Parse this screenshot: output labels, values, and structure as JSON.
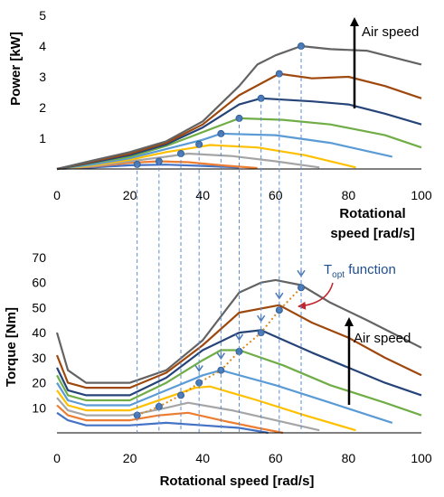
{
  "chart_data": [
    {
      "type": "line",
      "title": "",
      "xlabel": "Rotational speed [rad/s]",
      "xlabel_lines": [
        "Rotational",
        "speed [rad/s]"
      ],
      "ylabel": "Power [kW]",
      "xlim": [
        0,
        100
      ],
      "ylim": [
        0,
        5
      ],
      "xticks": [
        "0",
        "20",
        "40",
        "60",
        "80",
        "100"
      ],
      "yticks": [
        "1",
        "2",
        "3",
        "4",
        "5"
      ],
      "grid": false,
      "annotation": "Air speed",
      "series": [
        {
          "color": "#4472c4",
          "x": [
            0,
            10,
            20,
            30,
            40,
            50
          ],
          "y": [
            0,
            0.05,
            0.12,
            0.14,
            0.1,
            0.05
          ]
        },
        {
          "color": "#ed7d31",
          "x": [
            0,
            10,
            20,
            28,
            36,
            45,
            55
          ],
          "y": [
            0,
            0.08,
            0.2,
            0.25,
            0.22,
            0.12,
            0.03
          ]
        },
        {
          "color": "#a5a5a5",
          "x": [
            0,
            10,
            20,
            30,
            36,
            48,
            60,
            72
          ],
          "y": [
            0,
            0.1,
            0.25,
            0.4,
            0.5,
            0.42,
            0.25,
            0.05
          ]
        },
        {
          "color": "#ffc000",
          "x": [
            0,
            10,
            20,
            30,
            38,
            42,
            55,
            68,
            82
          ],
          "y": [
            0,
            0.12,
            0.3,
            0.55,
            0.7,
            0.78,
            0.7,
            0.45,
            0.05
          ]
        },
        {
          "color": "#5b9bd5",
          "x": [
            0,
            10,
            20,
            30,
            40,
            45,
            60,
            75,
            92
          ],
          "y": [
            0,
            0.15,
            0.35,
            0.65,
            0.95,
            1.15,
            1.1,
            0.85,
            0.4
          ]
        },
        {
          "color": "#70ad47",
          "x": [
            0,
            10,
            20,
            30,
            40,
            50,
            62,
            75,
            90,
            100
          ],
          "y": [
            0,
            0.2,
            0.4,
            0.75,
            1.2,
            1.65,
            1.6,
            1.45,
            1.1,
            0.7
          ]
        },
        {
          "color": "#264478",
          "x": [
            0,
            10,
            20,
            30,
            40,
            50,
            56,
            70,
            80,
            90,
            100
          ],
          "y": [
            0,
            0.22,
            0.45,
            0.8,
            1.35,
            2.1,
            2.3,
            2.2,
            2.1,
            1.8,
            1.45
          ]
        },
        {
          "color": "#9e480e",
          "x": [
            0,
            10,
            20,
            30,
            40,
            50,
            61,
            70,
            80,
            90,
            100
          ],
          "y": [
            0,
            0.25,
            0.5,
            0.85,
            1.45,
            2.4,
            3.1,
            2.95,
            3.0,
            2.7,
            2.3
          ]
        },
        {
          "color": "#636363",
          "x": [
            0,
            10,
            20,
            30,
            40,
            50,
            55,
            60,
            67,
            75,
            85,
            100
          ],
          "y": [
            0,
            0.28,
            0.55,
            0.9,
            1.55,
            2.7,
            3.4,
            3.7,
            4.0,
            3.9,
            3.85,
            3.4
          ]
        }
      ],
      "optimal_points": {
        "color": "#4a78b5",
        "x": [
          22,
          28,
          34,
          39,
          45,
          50,
          56,
          61,
          67
        ],
        "y": [
          0.15,
          0.25,
          0.5,
          0.8,
          1.15,
          1.65,
          2.3,
          3.1,
          4.0
        ]
      }
    },
    {
      "type": "line",
      "title": "",
      "xlabel": "Rotational speed [rad/s]",
      "ylabel": "Torque [Nm]",
      "xlim": [
        0,
        100
      ],
      "ylim": [
        0,
        70
      ],
      "xticks": [
        "0",
        "20",
        "40",
        "60",
        "80",
        "100"
      ],
      "yticks": [
        "10",
        "20",
        "30",
        "40",
        "50",
        "60",
        "70"
      ],
      "grid": false,
      "annotation": "Air speed",
      "topt_label": {
        "main": "T",
        "sub": "opt",
        "rest": " function"
      },
      "series": [
        {
          "color": "#4472c4",
          "x": [
            0,
            3,
            8,
            20,
            30,
            40,
            50,
            58
          ],
          "y": [
            8,
            5,
            3,
            3,
            4,
            3,
            2,
            0
          ]
        },
        {
          "color": "#ed7d31",
          "x": [
            0,
            3,
            8,
            20,
            28,
            36,
            45,
            55,
            62
          ],
          "y": [
            11,
            7,
            5,
            5,
            7,
            8,
            5,
            2,
            0
          ]
        },
        {
          "color": "#a5a5a5",
          "x": [
            0,
            3,
            8,
            20,
            30,
            36,
            48,
            60,
            72
          ],
          "y": [
            14,
            9,
            7,
            7,
            10,
            12,
            9,
            5,
            1
          ]
        },
        {
          "color": "#ffc000",
          "x": [
            0,
            3,
            8,
            20,
            30,
            38,
            42,
            55,
            68,
            82
          ],
          "y": [
            17,
            11,
            9,
            9,
            14,
            18,
            18.5,
            13,
            7,
            1
          ]
        },
        {
          "color": "#5b9bd5",
          "x": [
            0,
            3,
            8,
            20,
            30,
            40,
            45,
            60,
            75,
            92
          ],
          "y": [
            20,
            13,
            11,
            11,
            17,
            23,
            25,
            19,
            12,
            4
          ]
        },
        {
          "color": "#70ad47",
          "x": [
            0,
            3,
            8,
            20,
            30,
            40,
            45,
            50,
            62,
            75,
            90,
            100
          ],
          "y": [
            23,
            15,
            13,
            13,
            20,
            29,
            33,
            33,
            27,
            19,
            12,
            7
          ]
        },
        {
          "color": "#264478",
          "x": [
            0,
            3,
            8,
            20,
            30,
            40,
            50,
            56,
            70,
            80,
            90,
            100
          ],
          "y": [
            26,
            17,
            15,
            15,
            22,
            33,
            40,
            41,
            32,
            26,
            20,
            15
          ]
        },
        {
          "color": "#9e480e",
          "x": [
            0,
            3,
            8,
            20,
            30,
            40,
            50,
            61,
            70,
            80,
            90,
            100
          ],
          "y": [
            31,
            20,
            18,
            18,
            24,
            35,
            48,
            51,
            44,
            38,
            30,
            23
          ]
        },
        {
          "color": "#636363",
          "x": [
            0,
            3,
            8,
            20,
            30,
            40,
            50,
            56,
            60,
            67,
            75,
            85,
            100
          ],
          "y": [
            40,
            25,
            20,
            20,
            25,
            37,
            56,
            60,
            61,
            59,
            52,
            45,
            34
          ]
        }
      ],
      "optimal_points": {
        "color": "#4a78b5",
        "x": [
          22,
          28,
          34,
          39,
          45,
          50,
          56,
          61,
          67
        ],
        "y": [
          7,
          10.5,
          15,
          20,
          25,
          32.5,
          40,
          49,
          58
        ]
      }
    }
  ]
}
